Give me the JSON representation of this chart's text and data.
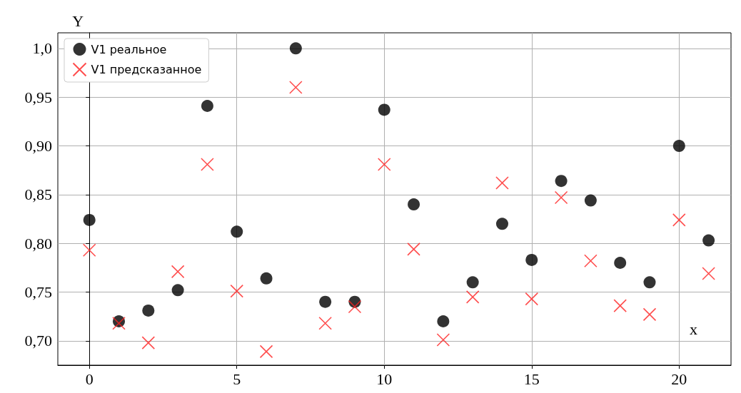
{
  "chart_data": {
    "type": "scatter",
    "xlabel": "x",
    "ylabel": "Y",
    "x": [
      0,
      1,
      2,
      3,
      4,
      5,
      6,
      7,
      8,
      9,
      10,
      11,
      12,
      13,
      14,
      15,
      16,
      17,
      18,
      19,
      20,
      21
    ],
    "series": [
      {
        "name": "V1 реальное",
        "color": "#000000",
        "marker": "circle",
        "values": [
          0.824,
          0.72,
          0.731,
          0.752,
          0.941,
          0.812,
          0.764,
          1.0,
          0.74,
          0.74,
          0.937,
          0.84,
          0.72,
          0.76,
          0.82,
          0.783,
          0.864,
          0.844,
          0.78,
          0.76,
          0.9,
          0.803
        ]
      },
      {
        "name": "V1 предсказанное",
        "color": "#ff2020",
        "marker": "cross",
        "values": [
          0.793,
          0.718,
          0.698,
          0.771,
          0.881,
          0.751,
          0.689,
          0.96,
          0.718,
          0.735,
          0.881,
          0.794,
          0.701,
          0.745,
          0.862,
          0.743,
          0.847,
          0.782,
          0.736,
          0.727,
          0.824,
          0.769
        ]
      }
    ],
    "xlim": [
      -1.07,
      21.76
    ],
    "xticks": [
      0,
      5,
      10,
      15,
      20
    ],
    "ylim": [
      0.675,
      1.016
    ],
    "yticks": [
      {
        "value": 0.7,
        "label": "0,70"
      },
      {
        "value": 0.75,
        "label": "0,75"
      },
      {
        "value": 0.8,
        "label": "0,80"
      },
      {
        "value": 0.85,
        "label": "0,85"
      },
      {
        "value": 0.9,
        "label": "0,90"
      },
      {
        "value": 0.95,
        "label": "0,95"
      },
      {
        "value": 1.0,
        "label": "1,0"
      }
    ],
    "grid": true,
    "legend": "top left"
  }
}
